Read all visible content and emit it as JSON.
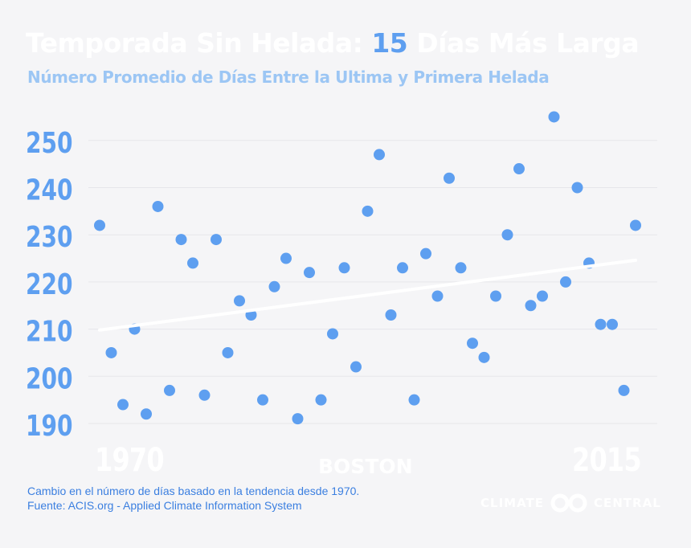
{
  "header": {
    "title_prefix": "Temporada Sin Helada:",
    "title_highlight": "15",
    "title_suffix": "Días Más Larga",
    "subtitle": "Número Promedio de Días Entre la Ultima y Primera Helada"
  },
  "labels": {
    "year_start": "1970",
    "year_end": "2015",
    "city": "BOSTON"
  },
  "footer": {
    "note": "Cambio en el número de días basado en la tendencia desde 1970.",
    "source": "Fuente: ACIS.org - Applied Climate Information System",
    "brand_left": "CLIMATE",
    "brand_right": "CENTRAL"
  },
  "colors": {
    "point": "#5e9ff0",
    "highlight": "#5e9ff0",
    "subtitle": "#9cc6f4",
    "trend": "#ffffff",
    "background": "#f5f5f7",
    "grid": "#e6e6ea"
  },
  "chart_data": {
    "type": "scatter",
    "title": "Temporada Sin Helada: 15 Días Más Larga",
    "subtitle": "Número Promedio de Días Entre la Ultima y Primera Helada",
    "xlabel": "",
    "ylabel": "",
    "xlim": [
      1970,
      2015
    ],
    "ylim": [
      186,
      255
    ],
    "yticks": [
      190,
      200,
      210,
      220,
      230,
      240,
      250
    ],
    "grid": true,
    "x": [
      1970,
      1971,
      1972,
      1973,
      1974,
      1975,
      1976,
      1977,
      1978,
      1979,
      1980,
      1981,
      1982,
      1983,
      1984,
      1985,
      1986,
      1987,
      1988,
      1989,
      1990,
      1991,
      1992,
      1993,
      1994,
      1995,
      1996,
      1997,
      1998,
      1999,
      2000,
      2001,
      2002,
      2003,
      2004,
      2005,
      2006,
      2007,
      2008,
      2009,
      2010,
      2011,
      2012,
      2013,
      2014,
      2015
    ],
    "y": [
      232,
      205,
      194,
      210,
      192,
      236,
      197,
      229,
      224,
      196,
      229,
      205,
      216,
      213,
      195,
      219,
      225,
      191,
      222,
      195,
      209,
      223,
      202,
      235,
      247,
      213,
      223,
      195,
      226,
      217,
      242,
      223,
      207,
      204,
      217,
      230,
      244,
      215,
      217,
      255,
      220,
      240,
      224,
      211,
      211,
      197
    ],
    "extra_point": {
      "x": 2016,
      "y": 232
    },
    "trend": {
      "start": [
        1970,
        209.8
      ],
      "end": [
        2016,
        224.6
      ]
    }
  }
}
